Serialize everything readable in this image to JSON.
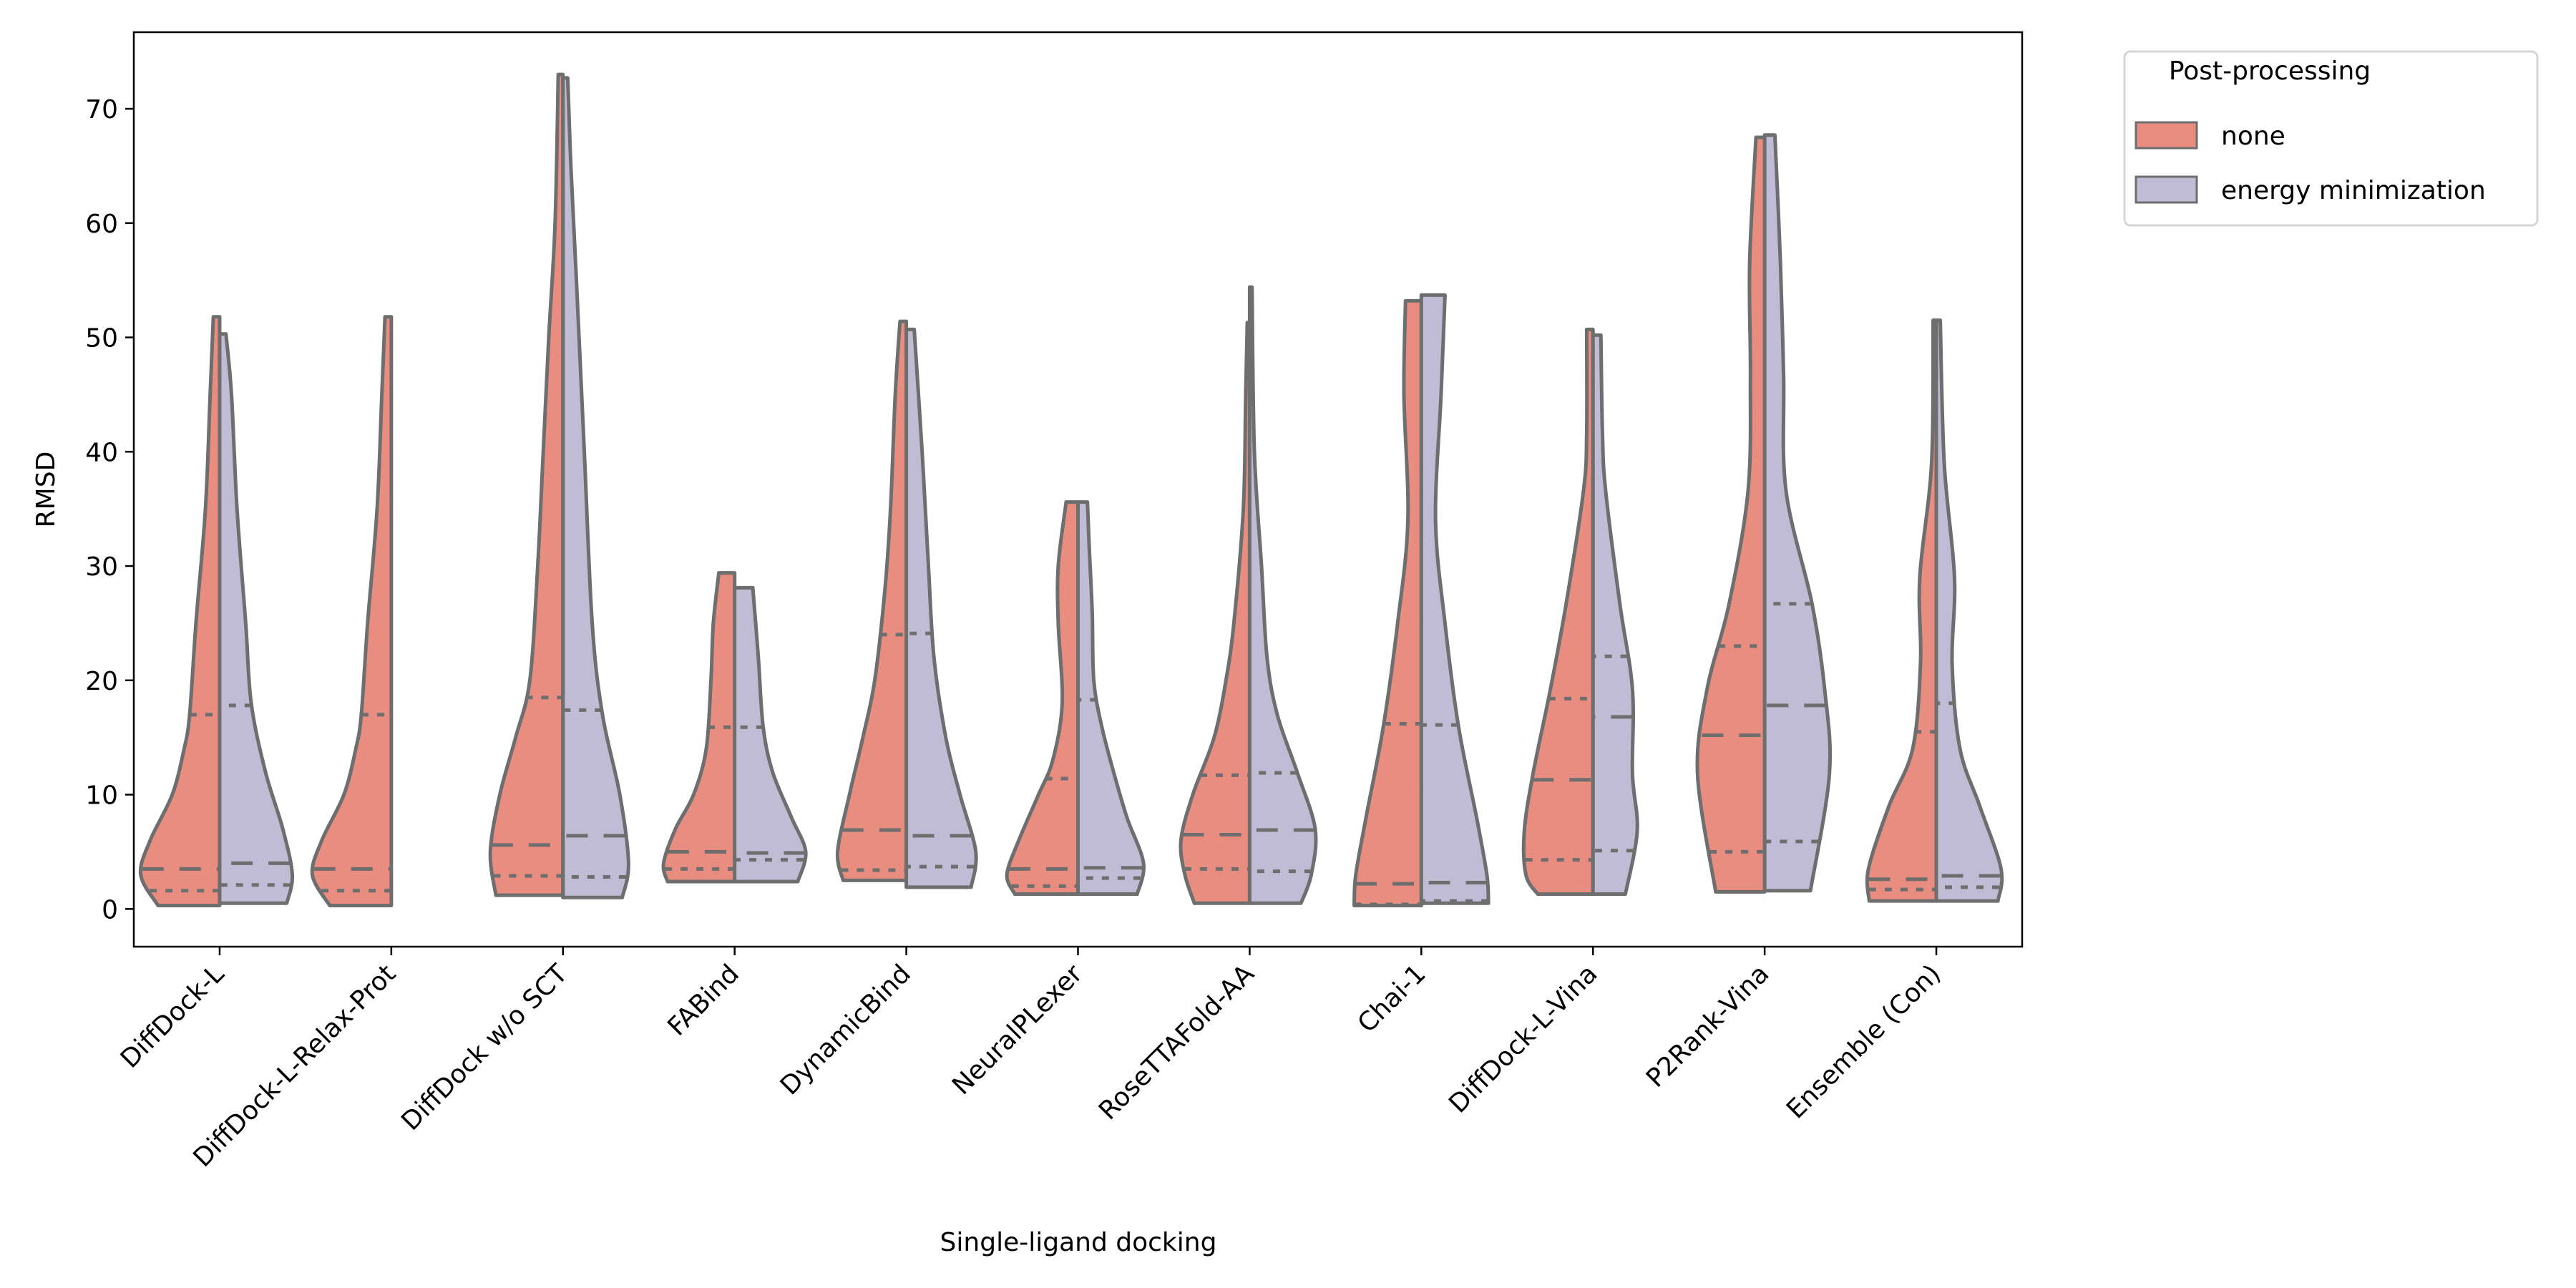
{
  "chart_data": {
    "type": "violin",
    "split": true,
    "xlabel": "Single-ligand docking",
    "ylabel": "RMSD",
    "ylim": [
      -3.3,
      76.7
    ],
    "yticks": [
      0,
      10,
      20,
      30,
      40,
      50,
      60,
      70
    ],
    "grid": false,
    "legend": {
      "title": "Post-processing",
      "placement": "outside-top-right"
    },
    "colors": {
      "none": "#e98d81",
      "energy minimization": "#c0bcd6",
      "outline": "#6e6e6e"
    },
    "series_names": [
      "none",
      "energy minimization"
    ],
    "categories": [
      "DiffDock-L",
      "DiffDock-L-Relax-Prot",
      "DiffDock w/o SCT",
      "FABind",
      "DynamicBind",
      "NeuralPLexer",
      "RoseTTAFold-AA",
      "Chai-1",
      "DiffDock-L-Vina",
      "P2Rank-Vina",
      "Ensemble (Con)"
    ],
    "violins": [
      {
        "none": {
          "min": 0.3,
          "max": 51.8,
          "q1": 1.6,
          "median": 3.5,
          "q3": 17.0,
          "density": [
            [
              0.3,
              0.78
            ],
            [
              3,
              1.0
            ],
            [
              6,
              0.88
            ],
            [
              10,
              0.6
            ],
            [
              14,
              0.45
            ],
            [
              17,
              0.38
            ],
            [
              25,
              0.3
            ],
            [
              35,
              0.18
            ],
            [
              45,
              0.12
            ],
            [
              51.8,
              0.08
            ]
          ]
        },
        "energy minimization": {
          "min": 0.5,
          "max": 50.3,
          "q1": 2.1,
          "median": 4.0,
          "q3": 17.8,
          "density": [
            [
              0.5,
              0.85
            ],
            [
              3,
              0.92
            ],
            [
              7,
              0.8
            ],
            [
              12,
              0.58
            ],
            [
              18,
              0.4
            ],
            [
              25,
              0.33
            ],
            [
              35,
              0.22
            ],
            [
              45,
              0.15
            ],
            [
              50.3,
              0.08
            ]
          ]
        }
      },
      {
        "none": {
          "min": 0.3,
          "max": 51.8,
          "q1": 1.6,
          "median": 3.5,
          "q3": 17.0,
          "density": [
            [
              0.3,
              0.78
            ],
            [
              3,
              1.0
            ],
            [
              6,
              0.88
            ],
            [
              10,
              0.6
            ],
            [
              14,
              0.45
            ],
            [
              17,
              0.38
            ],
            [
              25,
              0.3
            ],
            [
              35,
              0.18
            ],
            [
              45,
              0.12
            ],
            [
              51.8,
              0.08
            ]
          ]
        },
        "energy minimization": null
      },
      {
        "none": {
          "min": 1.2,
          "max": 73.0,
          "q1": 2.9,
          "median": 5.6,
          "q3": 18.5,
          "density": [
            [
              1.2,
              0.85
            ],
            [
              5,
              0.92
            ],
            [
              10,
              0.8
            ],
            [
              15,
              0.6
            ],
            [
              20,
              0.42
            ],
            [
              30,
              0.32
            ],
            [
              40,
              0.25
            ],
            [
              50,
              0.18
            ],
            [
              60,
              0.1
            ],
            [
              73,
              0.06
            ]
          ]
        },
        "energy minimization": {
          "min": 1.0,
          "max": 72.7,
          "q1": 2.8,
          "median": 6.4,
          "q3": 17.4,
          "density": [
            [
              1.0,
              0.75
            ],
            [
              4,
              0.83
            ],
            [
              10,
              0.72
            ],
            [
              17,
              0.5
            ],
            [
              25,
              0.37
            ],
            [
              40,
              0.27
            ],
            [
              55,
              0.17
            ],
            [
              65,
              0.1
            ],
            [
              72.7,
              0.06
            ]
          ]
        }
      },
      {
        "none": {
          "min": 2.4,
          "max": 29.4,
          "q1": 3.5,
          "median": 5.0,
          "q3": 15.9,
          "density": [
            [
              2.4,
              0.85
            ],
            [
              4,
              0.9
            ],
            [
              7,
              0.75
            ],
            [
              10,
              0.52
            ],
            [
              14,
              0.36
            ],
            [
              20,
              0.3
            ],
            [
              25,
              0.27
            ],
            [
              29.4,
              0.2
            ]
          ]
        },
        "energy minimization": {
          "min": 2.4,
          "max": 28.1,
          "q1": 4.3,
          "median": 4.9,
          "q3": 15.9,
          "density": [
            [
              2.4,
              0.8
            ],
            [
              5,
              0.9
            ],
            [
              8,
              0.72
            ],
            [
              12,
              0.48
            ],
            [
              16,
              0.36
            ],
            [
              22,
              0.3
            ],
            [
              28.1,
              0.23
            ]
          ]
        }
      },
      {
        "none": {
          "min": 2.5,
          "max": 51.4,
          "q1": 3.4,
          "median": 6.9,
          "q3": 24.0,
          "density": [
            [
              2.5,
              0.8
            ],
            [
              5,
              0.87
            ],
            [
              10,
              0.72
            ],
            [
              15,
              0.55
            ],
            [
              20,
              0.4
            ],
            [
              28,
              0.27
            ],
            [
              35,
              0.2
            ],
            [
              45,
              0.14
            ],
            [
              51.4,
              0.08
            ]
          ]
        },
        "energy minimization": {
          "min": 1.9,
          "max": 50.7,
          "q1": 3.7,
          "median": 6.4,
          "q3": 24.1,
          "density": [
            [
              1.9,
              0.82
            ],
            [
              5,
              0.88
            ],
            [
              10,
              0.68
            ],
            [
              15,
              0.5
            ],
            [
              22,
              0.35
            ],
            [
              30,
              0.28
            ],
            [
              40,
              0.2
            ],
            [
              50.7,
              0.1
            ]
          ]
        }
      },
      {
        "none": {
          "min": 1.3,
          "max": 35.6,
          "q1": 2.0,
          "median": 3.5,
          "q3": 11.4,
          "density": [
            [
              1.3,
              0.8
            ],
            [
              3,
              0.9
            ],
            [
              6,
              0.75
            ],
            [
              10,
              0.5
            ],
            [
              13,
              0.32
            ],
            [
              18,
              0.2
            ],
            [
              25,
              0.25
            ],
            [
              30,
              0.25
            ],
            [
              35.6,
              0.15
            ]
          ]
        },
        "energy minimization": {
          "min": 1.3,
          "max": 35.6,
          "q1": 2.7,
          "median": 3.6,
          "q3": 18.3,
          "density": [
            [
              1.3,
              0.75
            ],
            [
              4,
              0.83
            ],
            [
              8,
              0.62
            ],
            [
              12,
              0.45
            ],
            [
              16,
              0.3
            ],
            [
              20,
              0.2
            ],
            [
              26,
              0.18
            ],
            [
              32,
              0.14
            ],
            [
              35.6,
              0.12
            ]
          ]
        }
      },
      {
        "none": {
          "min": 0.5,
          "max": 51.3,
          "q1": 3.5,
          "median": 6.5,
          "q3": 11.7,
          "density": [
            [
              0.5,
              0.7
            ],
            [
              3,
              0.82
            ],
            [
              6,
              0.87
            ],
            [
              10,
              0.72
            ],
            [
              15,
              0.45
            ],
            [
              20,
              0.3
            ],
            [
              25,
              0.2
            ],
            [
              35,
              0.08
            ],
            [
              45,
              0.05
            ],
            [
              51.3,
              0.03
            ]
          ]
        },
        "energy minimization": {
          "min": 0.5,
          "max": 54.4,
          "q1": 3.3,
          "median": 6.9,
          "q3": 11.9,
          "density": [
            [
              0.5,
              0.65
            ],
            [
              3,
              0.78
            ],
            [
              7,
              0.83
            ],
            [
              12,
              0.6
            ],
            [
              17,
              0.35
            ],
            [
              22,
              0.22
            ],
            [
              30,
              0.15
            ],
            [
              40,
              0.06
            ],
            [
              54.4,
              0.03
            ]
          ]
        }
      },
      {
        "none": {
          "min": 0.3,
          "max": 53.2,
          "q1": 0.4,
          "median": 2.2,
          "q3": 16.2,
          "density": [
            [
              0.3,
              0.85
            ],
            [
              3,
              0.83
            ],
            [
              8,
              0.7
            ],
            [
              16,
              0.48
            ],
            [
              25,
              0.3
            ],
            [
              34,
              0.17
            ],
            [
              45,
              0.22
            ],
            [
              53.2,
              0.2
            ]
          ]
        },
        "energy minimization": {
          "min": 0.5,
          "max": 53.7,
          "q1": 0.7,
          "median": 2.3,
          "q3": 16.1,
          "density": [
            [
              0.5,
              0.85
            ],
            [
              3,
              0.83
            ],
            [
              8,
              0.7
            ],
            [
              16,
              0.47
            ],
            [
              25,
              0.3
            ],
            [
              34,
              0.18
            ],
            [
              45,
              0.25
            ],
            [
              53.7,
              0.3
            ]
          ]
        }
      },
      {
        "none": {
          "min": 1.3,
          "max": 50.7,
          "q1": 4.3,
          "median": 11.3,
          "q3": 18.4,
          "density": [
            [
              1.3,
              0.7
            ],
            [
              3,
              0.85
            ],
            [
              6.8,
              0.87
            ],
            [
              11.8,
              0.76
            ],
            [
              19.2,
              0.54
            ],
            [
              26.7,
              0.34
            ],
            [
              36.6,
              0.12
            ],
            [
              41.6,
              0.08
            ],
            [
              50.7,
              0.08
            ]
          ]
        },
        "energy minimization": {
          "min": 1.3,
          "max": 50.2,
          "q1": 5.1,
          "median": 16.8,
          "q3": 22.1,
          "density": [
            [
              1.3,
              0.41
            ],
            [
              6.8,
              0.56
            ],
            [
              11.8,
              0.5
            ],
            [
              19.2,
              0.5
            ],
            [
              26.7,
              0.34
            ],
            [
              36.6,
              0.16
            ],
            [
              41.6,
              0.12
            ],
            [
              50.2,
              0.1
            ]
          ]
        }
      },
      {
        "none": {
          "min": 1.5,
          "max": 67.5,
          "q1": 5.0,
          "median": 15.2,
          "q3": 23.0,
          "density": [
            [
              1.5,
              0.62
            ],
            [
              11.8,
              0.85
            ],
            [
              19.2,
              0.73
            ],
            [
              26.7,
              0.45
            ],
            [
              36.6,
              0.21
            ],
            [
              46.6,
              0.18
            ],
            [
              56.5,
              0.19
            ],
            [
              67.5,
              0.11
            ]
          ]
        },
        "energy minimization": {
          "min": 1.6,
          "max": 67.7,
          "q1": 5.9,
          "median": 17.8,
          "q3": 26.7,
          "density": [
            [
              1.6,
              0.58
            ],
            [
              11.8,
              0.82
            ],
            [
              19.2,
              0.76
            ],
            [
              26.7,
              0.6
            ],
            [
              36.6,
              0.27
            ],
            [
              46.6,
              0.24
            ],
            [
              56.5,
              0.2
            ],
            [
              67.7,
              0.13
            ]
          ]
        }
      },
      {
        "none": {
          "min": 0.7,
          "max": 51.5,
          "q1": 1.7,
          "median": 2.6,
          "q3": 15.5,
          "density": [
            [
              0.7,
              0.85
            ],
            [
              3.5,
              0.86
            ],
            [
              9,
              0.6
            ],
            [
              14,
              0.3
            ],
            [
              21.5,
              0.2
            ],
            [
              29,
              0.21
            ],
            [
              39,
              0.06
            ],
            [
              51.5,
              0.04
            ]
          ]
        },
        "energy minimization": {
          "min": 0.7,
          "max": 51.5,
          "q1": 1.9,
          "median": 2.9,
          "q3": 18.0,
          "density": [
            [
              0.7,
              0.78
            ],
            [
              3.5,
              0.82
            ],
            [
              9,
              0.55
            ],
            [
              14,
              0.3
            ],
            [
              21.5,
              0.2
            ],
            [
              29,
              0.23
            ],
            [
              39,
              0.1
            ],
            [
              51.5,
              0.05
            ]
          ]
        }
      }
    ]
  }
}
